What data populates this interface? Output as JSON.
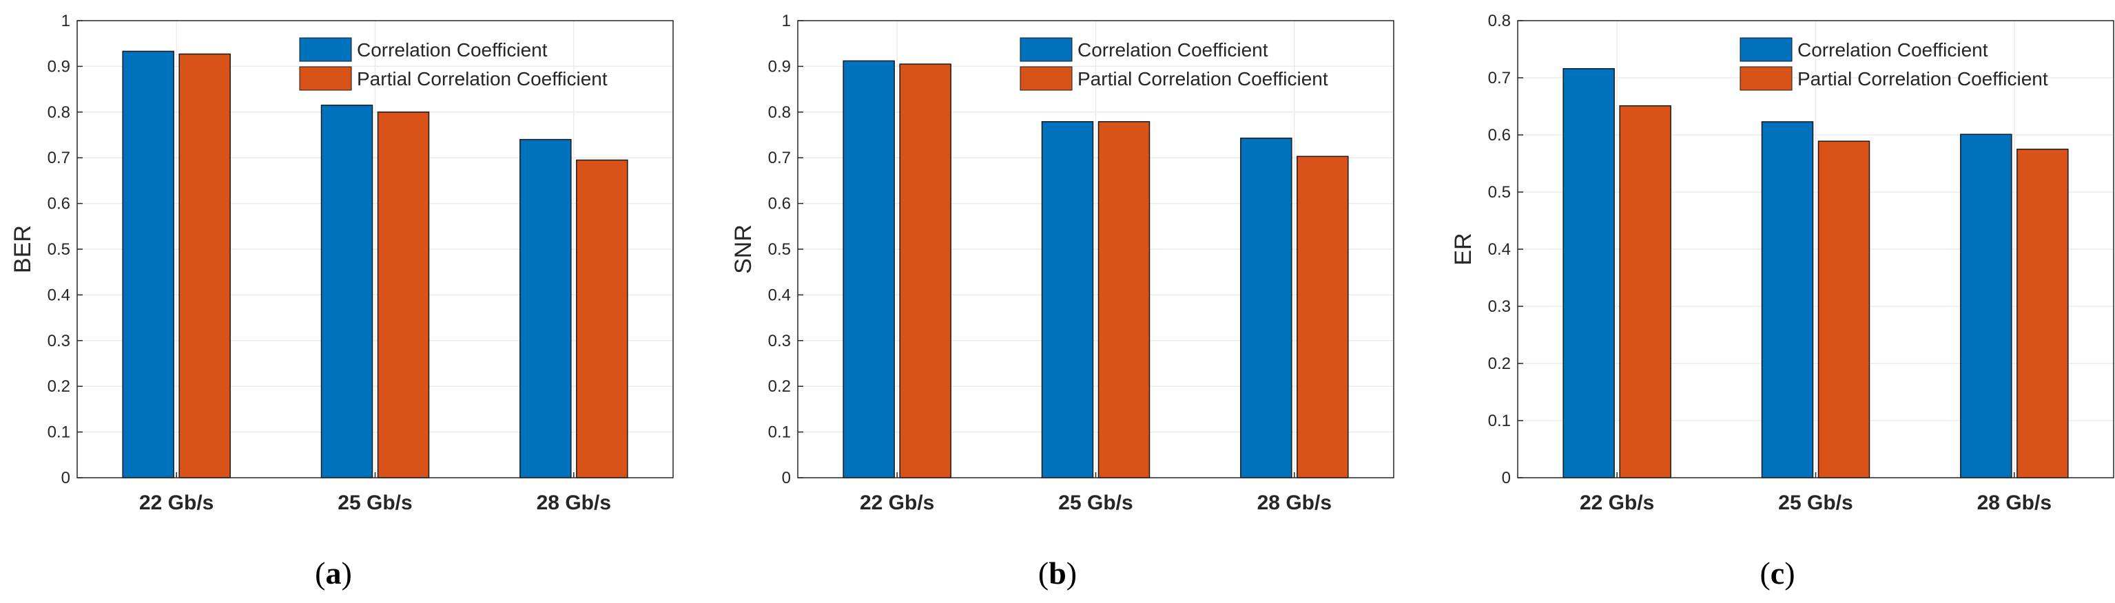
{
  "chart_data": [
    {
      "type": "bar",
      "panel_label": "a",
      "categories": [
        "22 Gb/s",
        "25 Gb/s",
        "28 Gb/s"
      ],
      "series": [
        {
          "name": "Correlation Coefficient",
          "values": [
            0.933,
            0.815,
            0.74
          ]
        },
        {
          "name": "Partial Correlation Coefficient",
          "values": [
            0.927,
            0.8,
            0.695
          ]
        }
      ],
      "title": "",
      "xlabel": "",
      "ylabel": "BER",
      "ylim": [
        0,
        1
      ],
      "yticks": [
        0,
        0.1,
        0.2,
        0.3,
        0.4,
        0.5,
        0.6,
        0.7,
        0.8,
        0.9,
        1
      ],
      "ytick_labels": [
        "0",
        "0.1",
        "0.2",
        "0.3",
        "0.4",
        "0.5",
        "0.6",
        "0.7",
        "0.8",
        "0.9",
        "1"
      ],
      "grid": true,
      "legend_position": "top-right"
    },
    {
      "type": "bar",
      "panel_label": "b",
      "categories": [
        "22 Gb/s",
        "25 Gb/s",
        "28 Gb/s"
      ],
      "series": [
        {
          "name": "Correlation Coefficient",
          "values": [
            0.912,
            0.779,
            0.743
          ]
        },
        {
          "name": "Partial Correlation Coefficient",
          "values": [
            0.905,
            0.779,
            0.703
          ]
        }
      ],
      "title": "",
      "xlabel": "",
      "ylabel": "SNR",
      "ylim": [
        0,
        1
      ],
      "yticks": [
        0,
        0.1,
        0.2,
        0.3,
        0.4,
        0.5,
        0.6,
        0.7,
        0.8,
        0.9,
        1
      ],
      "ytick_labels": [
        "0",
        "0.1",
        "0.2",
        "0.3",
        "0.4",
        "0.5",
        "0.6",
        "0.7",
        "0.8",
        "0.9",
        "1"
      ],
      "grid": true,
      "legend_position": "top-right"
    },
    {
      "type": "bar",
      "panel_label": "c",
      "categories": [
        "22 Gb/s",
        "25 Gb/s",
        "28 Gb/s"
      ],
      "series": [
        {
          "name": "Correlation Coefficient",
          "values": [
            0.716,
            0.623,
            0.601
          ]
        },
        {
          "name": "Partial Correlation Coefficient",
          "values": [
            0.651,
            0.589,
            0.575
          ]
        }
      ],
      "title": "",
      "xlabel": "",
      "ylabel": "ER",
      "ylim": [
        0,
        0.8
      ],
      "yticks": [
        0,
        0.1,
        0.2,
        0.3,
        0.4,
        0.5,
        0.6,
        0.7,
        0.8
      ],
      "ytick_labels": [
        "0",
        "0.1",
        "0.2",
        "0.3",
        "0.4",
        "0.5",
        "0.6",
        "0.7",
        "0.8"
      ],
      "grid": true,
      "legend_position": "top-right"
    }
  ],
  "colors": {
    "series": [
      "#0072BD",
      "#D95319"
    ],
    "grid": "#ebebeb",
    "axis": "#262626",
    "bar_edge": "#1a1a1a"
  },
  "captions": [
    {
      "open": "(",
      "letter": "a",
      "close": ")"
    },
    {
      "open": "(",
      "letter": "b",
      "close": ")"
    },
    {
      "open": "(",
      "letter": "c",
      "close": ")"
    }
  ]
}
